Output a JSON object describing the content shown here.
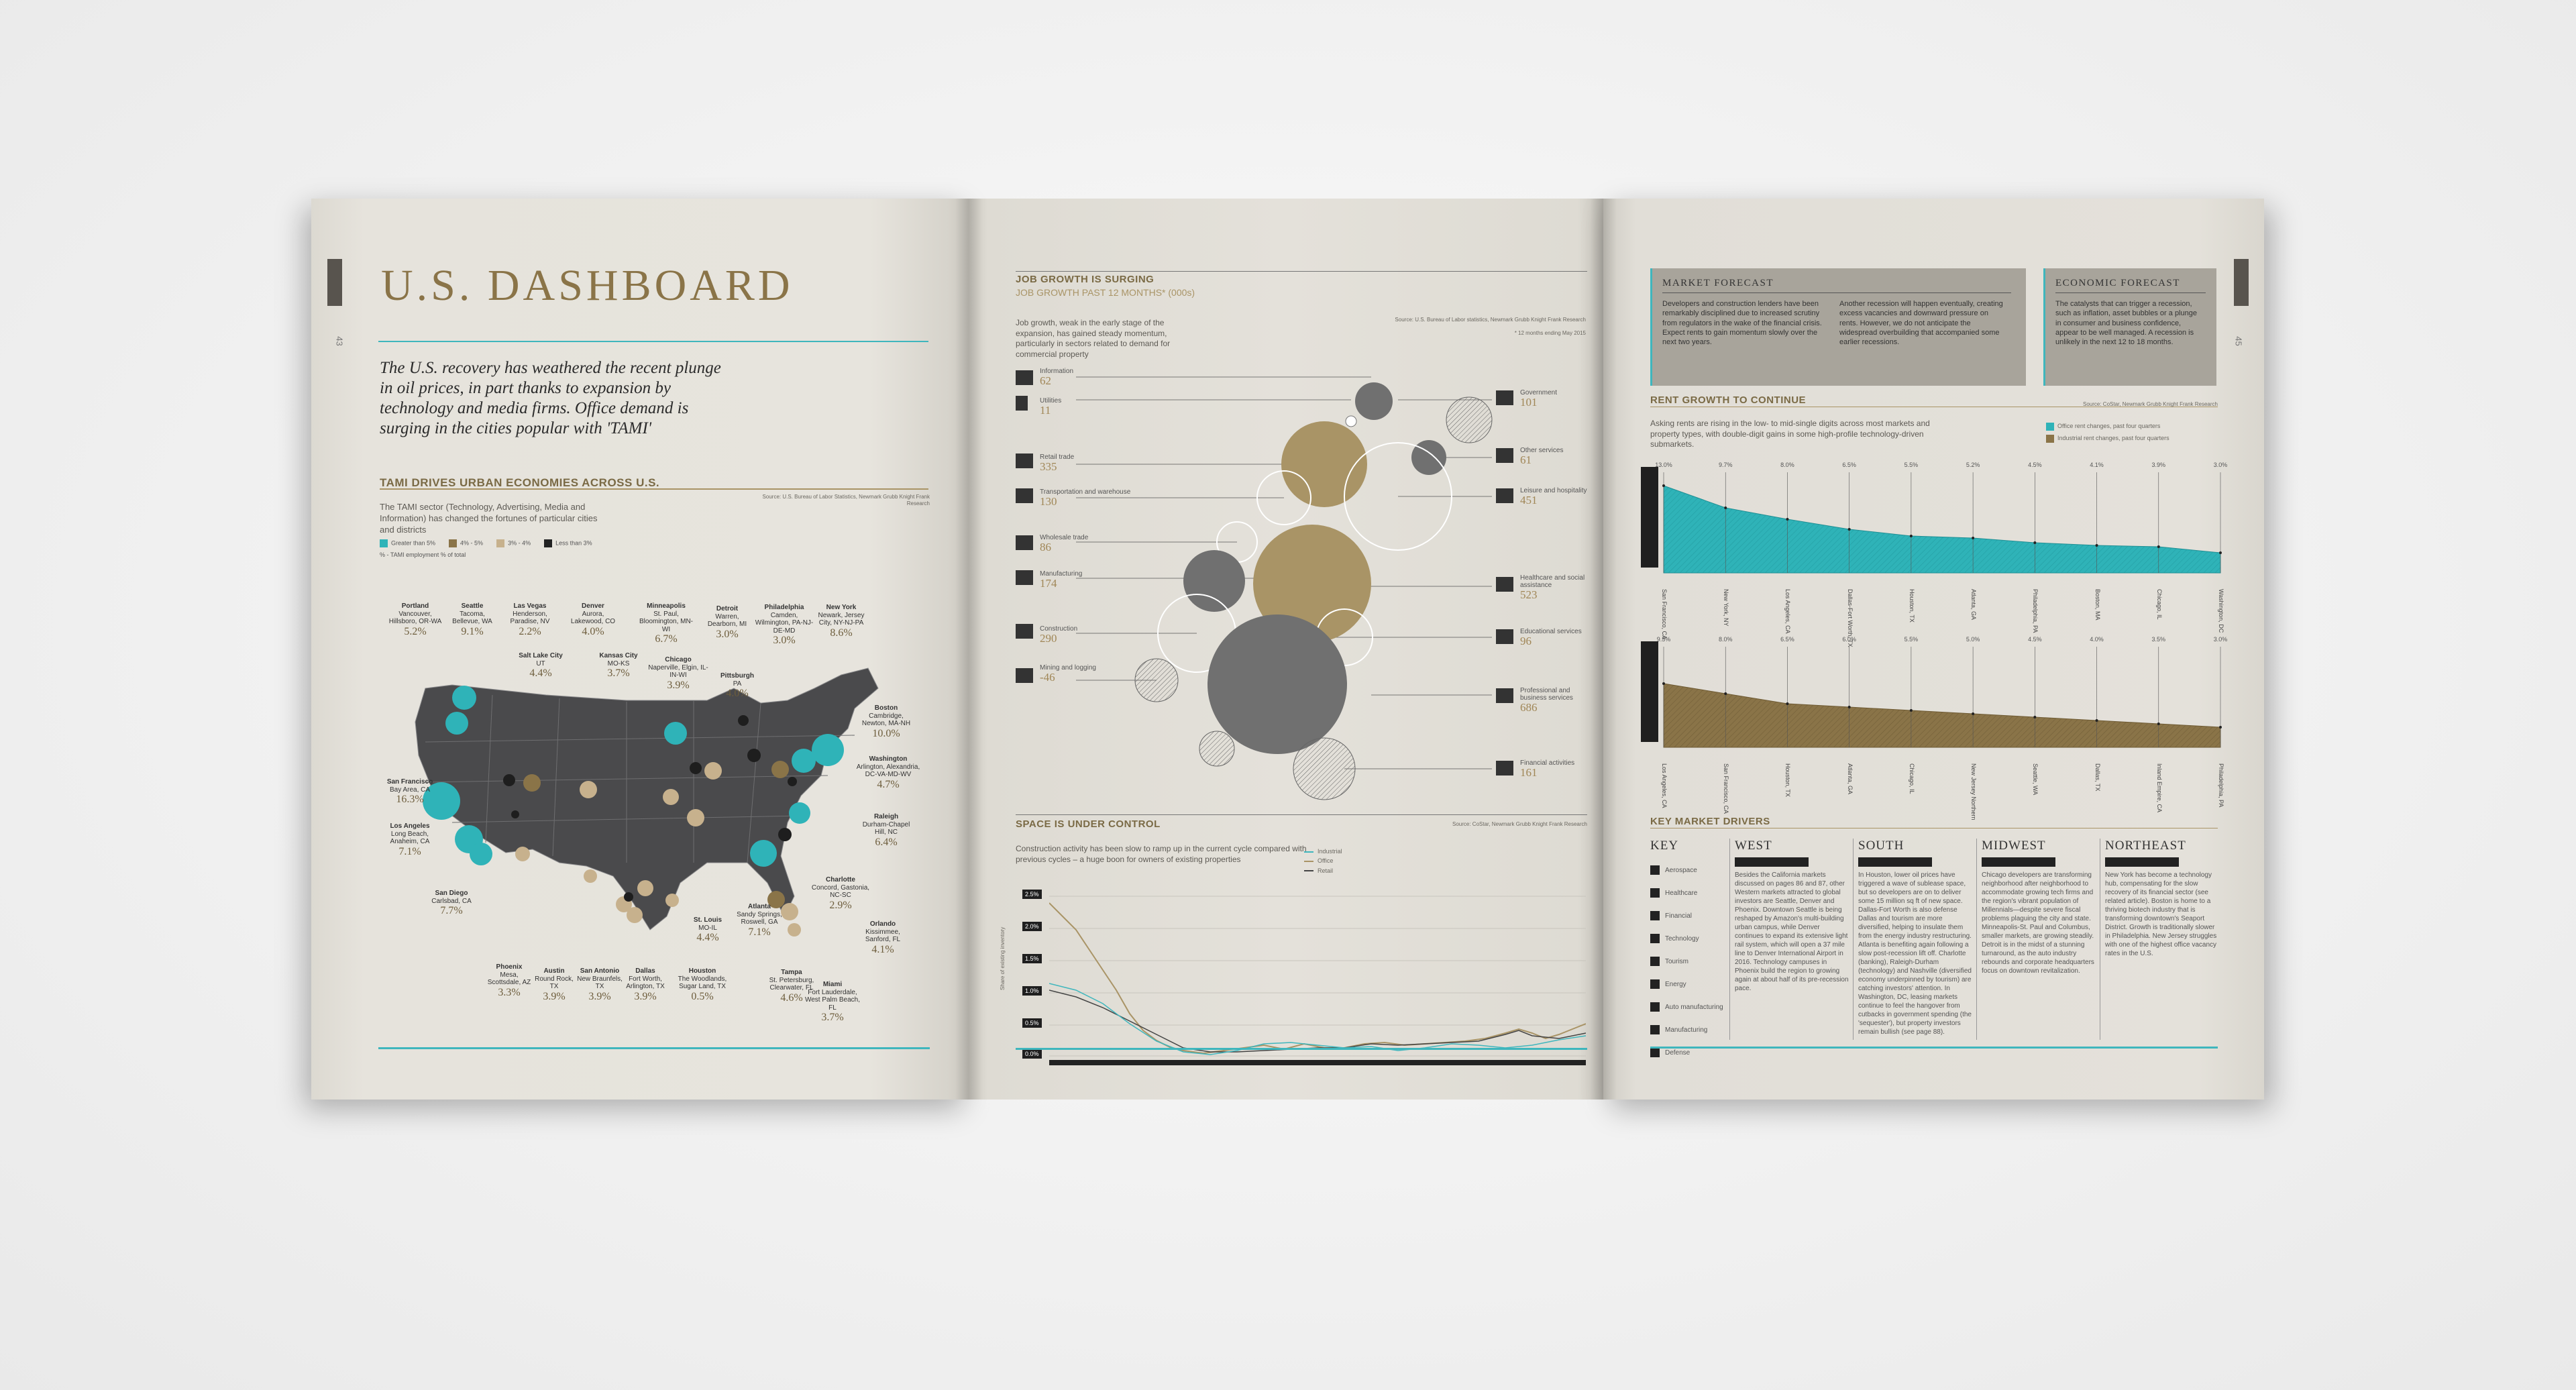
{
  "left": {
    "title": "U.S. DASHBOARD",
    "page_number": "43",
    "intro": "The U.S. recovery has weathered the recent plunge in oil prices, in part thanks to expansion by technology and media firms. Office demand is surging in the cities popular with 'TAMI'",
    "section_title": "TAMI DRIVES URBAN ECONOMIES ACROSS U.S.",
    "section_source": "Source: U.S. Bureau of Labor Statistics, Newmark Grubb Knight Frank Research",
    "section_desc": "The TAMI sector (Technology, Advertising, Media and Information) has changed the fortunes of particular cities and districts",
    "legend": [
      {
        "label": "Greater than 5%",
        "color": "#2fb3b8"
      },
      {
        "label": "4% - 5%",
        "color": "#8a7448"
      },
      {
        "label": "3% - 4%",
        "color": "#c7b18d"
      },
      {
        "label": "Less than 3%",
        "color": "#222222"
      },
      {
        "label": "% - TAMI employment % of total",
        "color": ""
      }
    ],
    "cities": [
      {
        "name": "Portland",
        "sub": "Vancouver, Hillsboro, OR-WA",
        "value": "5.2%"
      },
      {
        "name": "Seattle",
        "sub": "Tacoma, Bellevue, WA",
        "value": "9.1%"
      },
      {
        "name": "Las Vegas",
        "sub": "Henderson, Paradise, NV",
        "value": "2.2%"
      },
      {
        "name": "Salt Lake City",
        "sub": "UT",
        "value": "4.4%"
      },
      {
        "name": "Denver",
        "sub": "Aurora, Lakewood, CO",
        "value": "4.0%"
      },
      {
        "name": "Kansas City",
        "sub": "MO-KS",
        "value": "3.7%"
      },
      {
        "name": "Minneapolis",
        "sub": "St. Paul, Bloomington, MN-WI",
        "value": "6.7%"
      },
      {
        "name": "Chicago",
        "sub": "Naperville, Elgin, IL-IN-WI",
        "value": "3.9%"
      },
      {
        "name": "Detroit",
        "sub": "Warren, Dearborn, MI",
        "value": "3.0%"
      },
      {
        "name": "Pittsburgh",
        "sub": "PA",
        "value": "4.0%"
      },
      {
        "name": "Philadelphia",
        "sub": "Camden, Wilmington, PA-NJ-DE-MD",
        "value": "3.0%"
      },
      {
        "name": "New York",
        "sub": "Newark, Jersey City, NY-NJ-PA",
        "value": "8.6%"
      },
      {
        "name": "Boston",
        "sub": "Cambridge, Newton, MA-NH",
        "value": "10.0%"
      },
      {
        "name": "Washington",
        "sub": "Arlington, Alexandria, DC-VA-MD-WV",
        "value": "4.7%"
      },
      {
        "name": "Raleigh",
        "sub": "Durham-Chapel Hill, NC",
        "value": "6.4%"
      },
      {
        "name": "Charlotte",
        "sub": "Concord, Gastonia, NC-SC",
        "value": "2.9%"
      },
      {
        "name": "Atlanta",
        "sub": "Sandy Springs, Roswell, GA",
        "value": "7.1%"
      },
      {
        "name": "Orlando",
        "sub": "Kissimmee, Sanford, FL",
        "value": "4.1%"
      },
      {
        "name": "Tampa",
        "sub": "St. Petersburg, Clearwater, FL",
        "value": "4.6%"
      },
      {
        "name": "Miami",
        "sub": "Fort Lauderdale, West Palm Beach, FL",
        "value": "3.7%"
      },
      {
        "name": "St. Louis",
        "sub": "MO-IL",
        "value": "4.4%"
      },
      {
        "name": "Houston",
        "sub": "The Woodlands, Sugar Land, TX",
        "value": "0.5%"
      },
      {
        "name": "Dallas",
        "sub": "Fort Worth, Arlington, TX",
        "value": "3.9%"
      },
      {
        "name": "San Antonio",
        "sub": "New Braunfels, TX",
        "value": "3.9%"
      },
      {
        "name": "Austin",
        "sub": "Round Rock, TX",
        "value": "3.9%"
      },
      {
        "name": "Phoenix",
        "sub": "Mesa, Scottsdale, AZ",
        "value": "3.3%"
      },
      {
        "name": "San Diego",
        "sub": "Carlsbad, CA",
        "value": "7.7%"
      },
      {
        "name": "Los Angeles",
        "sub": "Long Beach, Anaheim, CA",
        "value": "7.1%"
      },
      {
        "name": "San Francisco",
        "sub": "Bay Area, CA",
        "value": "16.3%"
      }
    ]
  },
  "mid": {
    "job_title": "JOB GROWTH IS SURGING",
    "job_subtitle": "JOB GROWTH PAST 12 MONTHS* (000s)",
    "job_source": "Source: U.S. Bureau of Labor statistics, Newmark Grubb Knight Frank Research",
    "job_note": "* 12 months ending May 2015",
    "job_desc": "Job growth, weak in the early stage of the expansion, has gained steady momentum, particularly in sectors related to demand for commercial property",
    "sectors_left": [
      {
        "label": "Information",
        "value": "62"
      },
      {
        "label": "Utilities",
        "value": "11"
      },
      {
        "label": "Retail trade",
        "value": "335"
      },
      {
        "label": "Transportation and warehouse",
        "value": "130"
      },
      {
        "label": "Wholesale trade",
        "value": "86"
      },
      {
        "label": "Manufacturing",
        "value": "174"
      },
      {
        "label": "Construction",
        "value": "290"
      },
      {
        "label": "Mining and logging",
        "value": "-46"
      }
    ],
    "sectors_right": [
      {
        "label": "Government",
        "value": "101"
      },
      {
        "label": "Other services",
        "value": "61"
      },
      {
        "label": "Leisure and hospitality",
        "value": "451"
      },
      {
        "label": "Healthcare and social assistance",
        "value": "523"
      },
      {
        "label": "Educational services",
        "value": "96"
      },
      {
        "label": "Professional and business services",
        "value": "686"
      },
      {
        "label": "Financial activities",
        "value": "161"
      }
    ],
    "space_title": "SPACE IS UNDER CONTROL",
    "space_source": "Source: CoStar, Newmark Grubb Knight Frank Research",
    "space_desc": "Construction activity has been slow to ramp up in the current cycle compared with previous cycles – a huge boon for owners of existing properties",
    "space_legend": [
      "Industrial",
      "Office",
      "Retail"
    ],
    "space_ylabel": "Share of existing inventory",
    "space_yticks": [
      "2.5%",
      "2.0%",
      "1.5%",
      "1.0%",
      "0.5%",
      "0.0%"
    ]
  },
  "right": {
    "page_number": "45",
    "market_title": "MARKET FORECAST",
    "market_body_1": "Developers and construction lenders have been remarkably disciplined due to increased scrutiny from regulators in the wake of the financial crisis. Expect rents to gain momentum slowly over the next two years.",
    "market_body_2": "Another recession will happen eventually, creating excess vacancies and downward pressure on rents. However, we do not anticipate the widespread overbuilding that accompanied some earlier recessions.",
    "econ_title": "ECONOMIC FORECAST",
    "econ_body": "The catalysts that can trigger a recession, such as inflation, asset bubbles or a plunge in consumer and business confidence, appear to be well managed. A recession is unlikely in the next 12 to 18 months.",
    "rent_title": "RENT GROWTH TO CONTINUE",
    "rent_source": "Source: CoStar, Newmark Grubb Knight Frank Research",
    "rent_desc": "Asking rents are rising in the low- to mid-single digits across most markets and property types, with double-digit gains in some high-profile technology-driven submarkets.",
    "rent_legend": [
      {
        "label": "Office rent changes, past four quarters",
        "color": "#2fb3b8"
      },
      {
        "label": "Industrial rent changes, past four quarters",
        "color": "#8a7448"
      }
    ],
    "office_top_labels": [
      "13.0%",
      "9.7%",
      "8.0%",
      "6.5%",
      "5.5%",
      "5.2%",
      "4.5%",
      "4.1%",
      "3.9%",
      "3.0%"
    ],
    "office_cities": [
      "San Francisco, CA",
      "New York, NY",
      "Los Angeles, CA",
      "Dallas-Fort Worth, TX",
      "Houston, TX",
      "Atlanta, GA",
      "Philadelphia, PA",
      "Boston, MA",
      "Chicago, IL",
      "Washington, DC"
    ],
    "ind_top_labels": [
      "9.5%",
      "8.0%",
      "6.5%",
      "6.0%",
      "5.5%",
      "5.0%",
      "4.5%",
      "4.0%",
      "3.5%",
      "3.0%"
    ],
    "ind_cities": [
      "Los Angeles, CA",
      "San Francisco, CA",
      "Houston, TX",
      "Atlanta, GA",
      "Chicago, IL",
      "New Jersey Northern",
      "Seattle, WA",
      "Dallas, TX",
      "Inland Empire, CA",
      "Philadelphia, PA"
    ],
    "office_chart": {
      "type": "area",
      "categories": [
        "San Francisco, CA",
        "New York, NY",
        "Los Angeles, CA",
        "Dallas-Fort Worth, TX",
        "Houston, TX",
        "Atlanta, GA",
        "Philadelphia, PA",
        "Boston, MA",
        "Chicago, IL",
        "Washington, DC"
      ],
      "values": [
        13.0,
        9.7,
        8.0,
        6.5,
        5.5,
        5.2,
        4.5,
        4.1,
        3.9,
        3.0
      ]
    },
    "ind_chart": {
      "type": "area",
      "categories": [
        "Los Angeles, CA",
        "San Francisco, CA",
        "Houston, TX",
        "Atlanta, GA",
        "Chicago, IL",
        "New Jersey Northern",
        "Seattle, WA",
        "Dallas, TX",
        "Inland Empire, CA",
        "Philadelphia, PA"
      ],
      "values": [
        9.5,
        8.0,
        6.5,
        6.0,
        5.5,
        5.0,
        4.5,
        4.0,
        3.5,
        3.0
      ]
    },
    "drivers_title": "KEY MARKET DRIVERS",
    "key_title": "KEY",
    "key_items": [
      "Aerospace",
      "Healthcare",
      "Financial",
      "Technology",
      "Tourism",
      "Energy",
      "Auto manufacturing",
      "Manufacturing",
      "Defense"
    ],
    "regions": [
      {
        "name": "WEST",
        "body": "Besides the California markets discussed on pages 86 and 87, other Western markets attracted to global investors are Seattle, Denver and Phoenix. Downtown Seattle is being reshaped by Amazon's multi-building urban campus, while Denver continues to expand its extensive light rail system, which will open a 37 mile line to Denver International Airport in 2016. Technology campuses in Phoenix build the region to growing again at about half of its pre-recession pace."
      },
      {
        "name": "SOUTH",
        "body": "In Houston, lower oil prices have triggered a wave of sublease space, but so developers are on to deliver some 15 million sq ft of new space. Dallas-Fort Worth is also defense Dallas and tourism are more diversified, helping to insulate them from the energy industry restructuring. Atlanta is benefiting again following a slow post-recession lift off. Charlotte (banking), Raleigh-Durham (technology) and Nashville (diversified economy underpinned by tourism) are catching investors' attention. In Washington, DC, leasing markets continue to feel the hangover from cutbacks in government spending (the 'sequester'), but property investors remain bullish (see page 88)."
      },
      {
        "name": "MIDWEST",
        "body": "Chicago developers are transforming neighborhood after neighborhood to accommodate growing tech firms and the region's vibrant population of Millennials—despite severe fiscal problems plaguing the city and state. Minneapolis-St. Paul and Columbus, smaller markets, are growing steadily. Detroit is in the midst of a stunning turnaround, as the auto industry rebounds and corporate headquarters focus on downtown revitalization."
      },
      {
        "name": "NORTHEAST",
        "body": "New York has become a technology hub, compensating for the slow recovery of its financial sector (see related article). Boston is home to a thriving biotech industry that is transforming downtown's Seaport District. Growth is traditionally slower in Philadelphia. New Jersey struggles with one of the highest office vacancy rates in the U.S."
      }
    ]
  }
}
